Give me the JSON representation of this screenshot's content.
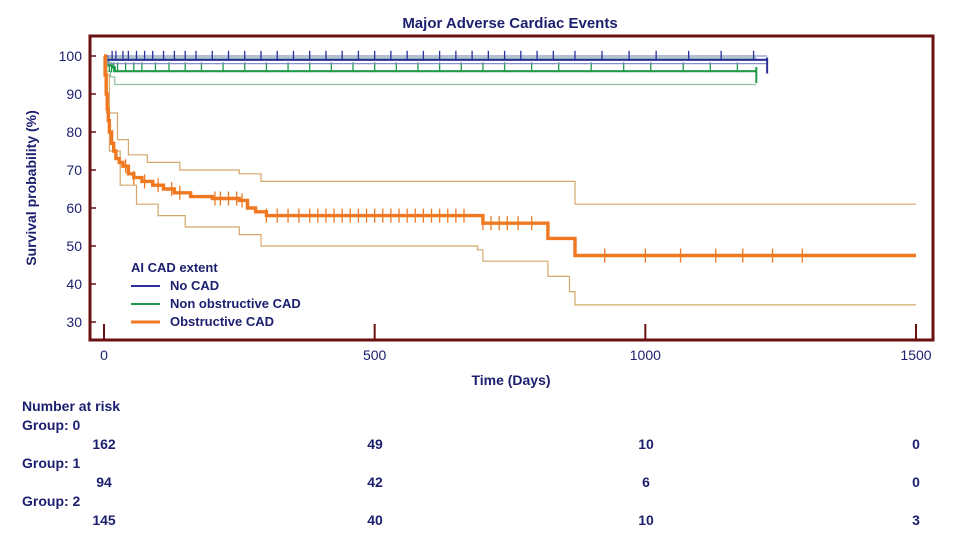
{
  "chart_data": {
    "type": "line",
    "title": "Major Adverse Cardiac Events",
    "xlabel": "Time (Days)",
    "ylabel": "Survival probability (%)",
    "xlim": [
      0,
      1500
    ],
    "ylim": [
      27,
      103
    ],
    "x_ticks": [
      0,
      500,
      1000,
      1500
    ],
    "y_ticks": [
      30,
      40,
      50,
      60,
      70,
      80,
      90,
      100
    ],
    "grid": false,
    "legend": {
      "title": "AI CAD extent",
      "position": "lower-left",
      "entries": [
        "No CAD",
        "Non obstructive CAD",
        "Obstructive CAD"
      ]
    },
    "colors": {
      "frame": "#6b1010",
      "axis_text": "#1b1f6e",
      "no_cad": "#2b2f9a",
      "no_cad_ci": "#8a90cc",
      "nonobs": "#1f9a4a",
      "nonobs_ci": "#8fbfa0",
      "obs": "#f07820",
      "obs_ci": "#d4a868"
    },
    "series": [
      {
        "name": "No CAD",
        "key": "no_cad",
        "x": [
          0,
          5,
          1225
        ],
        "y": [
          100,
          99,
          99
        ],
        "ci_upper": [
          [
            0,
            100
          ],
          [
            1225,
            100
          ]
        ],
        "ci_lower": [
          [
            0,
            100
          ],
          [
            8,
            98
          ],
          [
            1225,
            98
          ]
        ],
        "censor_x": [
          15,
          22,
          35,
          45,
          60,
          75,
          90,
          110,
          130,
          150,
          170,
          200,
          230,
          260,
          290,
          320,
          350,
          380,
          410,
          440,
          470,
          500,
          530,
          560,
          590,
          620,
          650,
          680,
          710,
          740,
          770,
          800,
          830,
          870,
          920,
          970,
          1020,
          1080,
          1140,
          1200
        ],
        "censor_y": 99,
        "end_x": 1225,
        "end_y": 97.5
      },
      {
        "name": "Non obstructive CAD",
        "key": "nonobs",
        "x": [
          0,
          3,
          8,
          15,
          20,
          1205
        ],
        "y": [
          100,
          98.5,
          97.5,
          97,
          96,
          96
        ],
        "ci_upper": [
          [
            0,
            100
          ],
          [
            10,
            99.5
          ],
          [
            1205,
            99.5
          ]
        ],
        "ci_lower": [
          [
            0,
            100
          ],
          [
            5,
            96
          ],
          [
            12,
            94.5
          ],
          [
            20,
            92.5
          ],
          [
            1205,
            92.5
          ]
        ],
        "censor_x": [
          10,
          14,
          18,
          25,
          40,
          55,
          70,
          95,
          120,
          150,
          180,
          220,
          260,
          300,
          340,
          380,
          420,
          460,
          500,
          540,
          580,
          620,
          660,
          700,
          740,
          790,
          840,
          900,
          960,
          1010,
          1070,
          1120,
          1170
        ],
        "censor_y": 96,
        "end_x": 1205,
        "end_y": 95
      },
      {
        "name": "Obstructive CAD",
        "key": "obs",
        "x": [
          0,
          2,
          4,
          6,
          8,
          10,
          14,
          18,
          22,
          28,
          35,
          45,
          55,
          70,
          90,
          110,
          130,
          160,
          200,
          250,
          265,
          280,
          300,
          480,
          690,
          700,
          810,
          820,
          860,
          870,
          1500
        ],
        "y": [
          100,
          95,
          90,
          86,
          83,
          80,
          77,
          75,
          73,
          72,
          71,
          69,
          68,
          67,
          66,
          65,
          64,
          63,
          62.5,
          62,
          60,
          59,
          58,
          58,
          58,
          56,
          56,
          52,
          52,
          47.5,
          47.5
        ],
        "ci_upper": [
          [
            0,
            100
          ],
          [
            5,
            95
          ],
          [
            10,
            85
          ],
          [
            25,
            78
          ],
          [
            45,
            74
          ],
          [
            80,
            72
          ],
          [
            140,
            70
          ],
          [
            250,
            69
          ],
          [
            290,
            67
          ],
          [
            480,
            67
          ],
          [
            800,
            67
          ],
          [
            870,
            61
          ],
          [
            1500,
            61
          ]
        ],
        "ci_lower": [
          [
            0,
            100
          ],
          [
            5,
            85
          ],
          [
            10,
            75
          ],
          [
            30,
            66
          ],
          [
            60,
            61
          ],
          [
            100,
            58
          ],
          [
            150,
            55
          ],
          [
            250,
            53
          ],
          [
            290,
            50
          ],
          [
            690,
            49
          ],
          [
            700,
            46
          ],
          [
            810,
            46
          ],
          [
            820,
            42
          ],
          [
            860,
            38
          ],
          [
            870,
            34.5
          ],
          [
            1500,
            34.5
          ]
        ],
        "censor_x": [
          40,
          55,
          75,
          100,
          125,
          140,
          205,
          215,
          230,
          245,
          255,
          300,
          320,
          340,
          360,
          380,
          395,
          410,
          425,
          440,
          455,
          470,
          485,
          500,
          515,
          530,
          545,
          560,
          575,
          590,
          605,
          620,
          635,
          650,
          665,
          700,
          715,
          730,
          745,
          765,
          790,
          925,
          1000,
          1065,
          1130,
          1180,
          1235,
          1290
        ],
        "censor_y": 47.5
      }
    ]
  },
  "risk_table": {
    "title": "Number at risk",
    "groups": [
      {
        "label": "Group: 0",
        "values": [
          "162",
          "49",
          "10",
          "0"
        ]
      },
      {
        "label": "Group: 1",
        "values": [
          "94",
          "42",
          "6",
          "0"
        ]
      },
      {
        "label": "Group: 2",
        "values": [
          "145",
          "40",
          "10",
          "3"
        ]
      }
    ]
  }
}
